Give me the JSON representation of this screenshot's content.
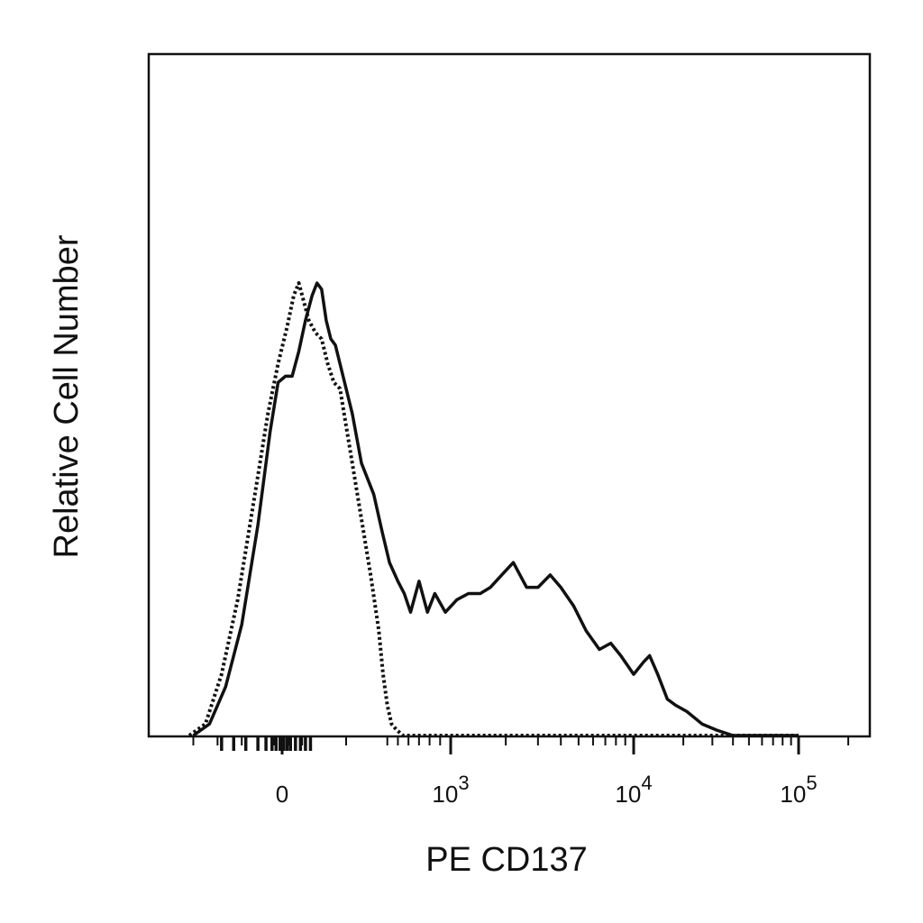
{
  "chart_data": {
    "type": "line",
    "title": "",
    "xlabel": "PE CD137",
    "ylabel": "Relative Cell Number",
    "x_scale": "biexponential",
    "x_ticks": [
      {
        "value": 0,
        "base": "0",
        "exp": ""
      },
      {
        "value": 1000,
        "base": "10",
        "exp": "3"
      },
      {
        "value": 10000,
        "base": "10",
        "exp": "4"
      },
      {
        "value": 100000,
        "base": "10",
        "exp": "5"
      }
    ],
    "ylim": [
      0,
      1
    ],
    "grid": false,
    "legend": "none",
    "series": [
      {
        "style": "solid",
        "points": [
          [
            -220,
            0.0
          ],
          [
            -180,
            0.02
          ],
          [
            -140,
            0.08
          ],
          [
            -100,
            0.18
          ],
          [
            -60,
            0.34
          ],
          [
            -30,
            0.49
          ],
          [
            -10,
            0.57
          ],
          [
            10,
            0.58
          ],
          [
            30,
            0.58
          ],
          [
            50,
            0.62
          ],
          [
            70,
            0.67
          ],
          [
            90,
            0.71
          ],
          [
            105,
            0.73
          ],
          [
            120,
            0.72
          ],
          [
            135,
            0.67
          ],
          [
            150,
            0.64
          ],
          [
            165,
            0.63
          ],
          [
            180,
            0.6
          ],
          [
            200,
            0.56
          ],
          [
            220,
            0.52
          ],
          [
            250,
            0.44
          ],
          [
            290,
            0.39
          ],
          [
            350,
            0.33
          ],
          [
            420,
            0.28
          ],
          [
            500,
            0.25
          ],
          [
            560,
            0.23
          ],
          [
            620,
            0.2
          ],
          [
            700,
            0.25
          ],
          [
            780,
            0.2
          ],
          [
            850,
            0.23
          ],
          [
            950,
            0.2
          ],
          [
            1080,
            0.22
          ],
          [
            1250,
            0.23
          ],
          [
            1450,
            0.23
          ],
          [
            1650,
            0.24
          ],
          [
            1900,
            0.26
          ],
          [
            2200,
            0.28
          ],
          [
            2600,
            0.24
          ],
          [
            3000,
            0.24
          ],
          [
            3500,
            0.26
          ],
          [
            4000,
            0.24
          ],
          [
            4700,
            0.21
          ],
          [
            5500,
            0.17
          ],
          [
            6500,
            0.14
          ],
          [
            7500,
            0.15
          ],
          [
            8500,
            0.13
          ],
          [
            10000,
            0.1
          ],
          [
            11500,
            0.12
          ],
          [
            12500,
            0.13
          ],
          [
            14000,
            0.1
          ],
          [
            16000,
            0.06
          ],
          [
            18000,
            0.05
          ],
          [
            21000,
            0.04
          ],
          [
            26000,
            0.02
          ],
          [
            32000,
            0.01
          ],
          [
            40000,
            0.0
          ],
          [
            60000,
            0.0
          ],
          [
            100000,
            0.0
          ]
        ]
      },
      {
        "style": "dotted",
        "points": [
          [
            -230,
            0.0
          ],
          [
            -190,
            0.02
          ],
          [
            -150,
            0.1
          ],
          [
            -110,
            0.22
          ],
          [
            -70,
            0.38
          ],
          [
            -35,
            0.52
          ],
          [
            -10,
            0.6
          ],
          [
            15,
            0.66
          ],
          [
            35,
            0.71
          ],
          [
            50,
            0.73
          ],
          [
            65,
            0.7
          ],
          [
            80,
            0.67
          ],
          [
            100,
            0.65
          ],
          [
            120,
            0.64
          ],
          [
            140,
            0.6
          ],
          [
            160,
            0.57
          ],
          [
            180,
            0.56
          ],
          [
            200,
            0.5
          ],
          [
            220,
            0.44
          ],
          [
            250,
            0.35
          ],
          [
            280,
            0.26
          ],
          [
            320,
            0.17
          ],
          [
            360,
            0.1
          ],
          [
            400,
            0.05
          ],
          [
            440,
            0.02
          ],
          [
            490,
            0.01
          ],
          [
            550,
            0.0
          ],
          [
            700,
            0.0
          ],
          [
            1000,
            0.0
          ],
          [
            10000,
            0.0
          ],
          [
            100000,
            0.0
          ]
        ]
      }
    ]
  }
}
